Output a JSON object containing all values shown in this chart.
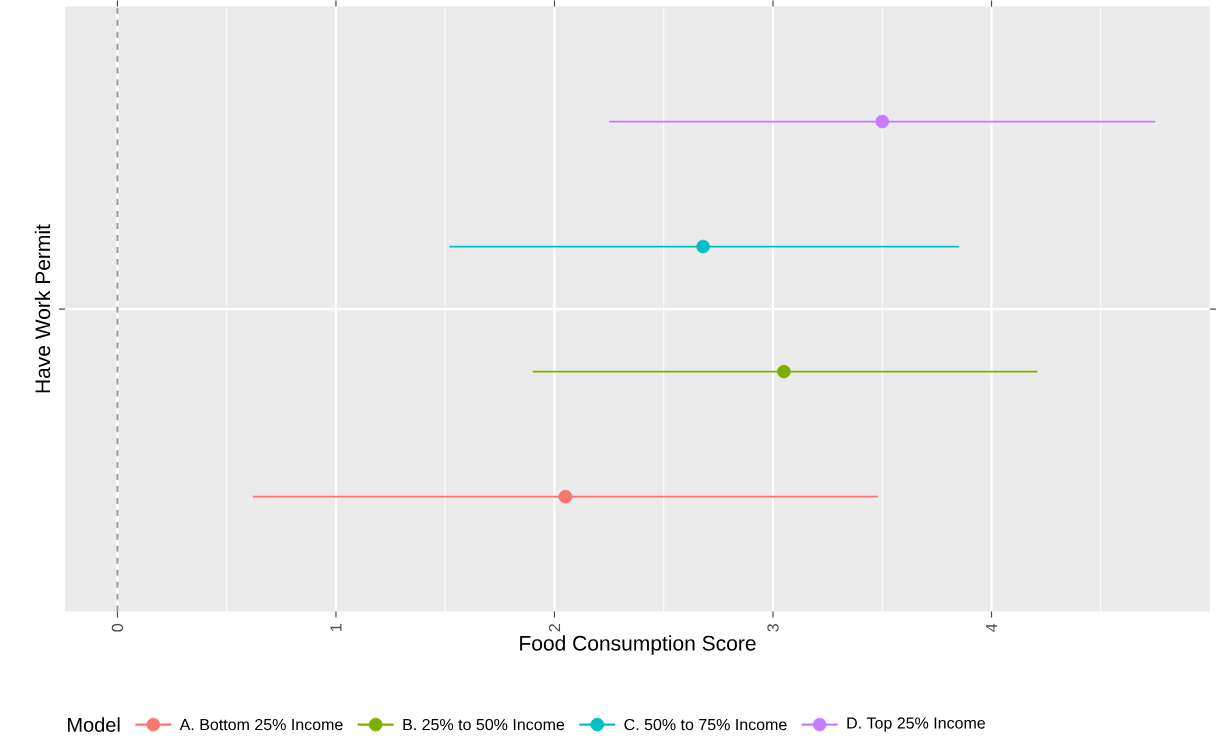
{
  "chart_data": {
    "type": "scatter",
    "orientation": "horizontal",
    "xlabel": "Food Consumption Score",
    "ylabel": "Have Work Permit",
    "legend_title": "Model",
    "categories": [
      null
    ],
    "series": [
      {
        "name": "A. Bottom 25% Income",
        "color": "#f8766d",
        "values": [
          2.05
        ],
        "errors": [
          [
            0.62,
            3.48
          ]
        ]
      },
      {
        "name": "B. 25% to 50% Income",
        "color": "#7cae00",
        "values": [
          3.05
        ],
        "errors": [
          [
            1.9,
            4.21
          ]
        ]
      },
      {
        "name": "C. 50% to 75% Income",
        "color": "#00bfc4",
        "values": [
          2.68
        ],
        "errors": [
          [
            1.52,
            3.85
          ]
        ]
      },
      {
        "name": "D. Top 25% Income",
        "color": "#c77cff",
        "values": [
          3.5
        ],
        "errors": [
          [
            2.25,
            4.75
          ]
        ]
      }
    ],
    "xlim": [
      -0.24,
      5.0
    ],
    "xticks": [
      0,
      1,
      2,
      3,
      4
    ],
    "grid": true,
    "legend": "bottom",
    "marker": "circle",
    "ref_lines": [
      {
        "axis": "x",
        "value": 0,
        "color": "#999999",
        "line_style": "dashed"
      }
    ]
  }
}
